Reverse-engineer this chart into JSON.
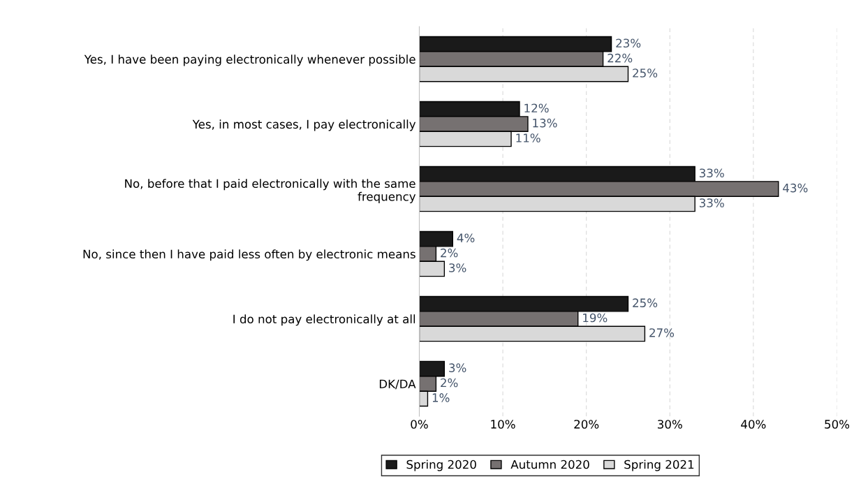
{
  "chart_data": {
    "type": "bar",
    "orientation": "horizontal",
    "categories": [
      "Yes, I have been paying electronically whenever possible",
      "Yes, in most cases, I pay electronically",
      "No, before that I paid electronically with the same\nfrequency",
      "No, since then I have paid less often by electronic means",
      "I do not pay electronically at all",
      "DK/DA"
    ],
    "series": [
      {
        "name": "Spring 2020",
        "color": "#1a1a1a",
        "values": [
          23,
          12,
          33,
          4,
          25,
          3
        ],
        "value_labels": [
          "23%",
          "12%",
          "33%",
          "4%",
          "25%",
          "3%"
        ]
      },
      {
        "name": "Autumn 2020",
        "color": "#767171",
        "values": [
          22,
          13,
          43,
          2,
          19,
          2
        ],
        "value_labels": [
          "22%",
          "13%",
          "43%",
          "2%",
          "19%",
          "2%"
        ]
      },
      {
        "name": "Spring 2021",
        "color": "#d9d9d9",
        "values": [
          25,
          11,
          33,
          3,
          27,
          1
        ],
        "value_labels": [
          "25%",
          "11%",
          "33%",
          "3%",
          "27%",
          "1%"
        ]
      }
    ],
    "xlim": [
      0,
      50
    ],
    "xticks": [
      {
        "value": 0,
        "label": "0%"
      },
      {
        "value": 10,
        "label": "10%"
      },
      {
        "value": 20,
        "label": "20%"
      },
      {
        "value": 30,
        "label": "30%"
      },
      {
        "value": 40,
        "label": "40%"
      },
      {
        "value": 50,
        "label": "50%"
      }
    ],
    "grid": "x",
    "legend": "bottom"
  }
}
